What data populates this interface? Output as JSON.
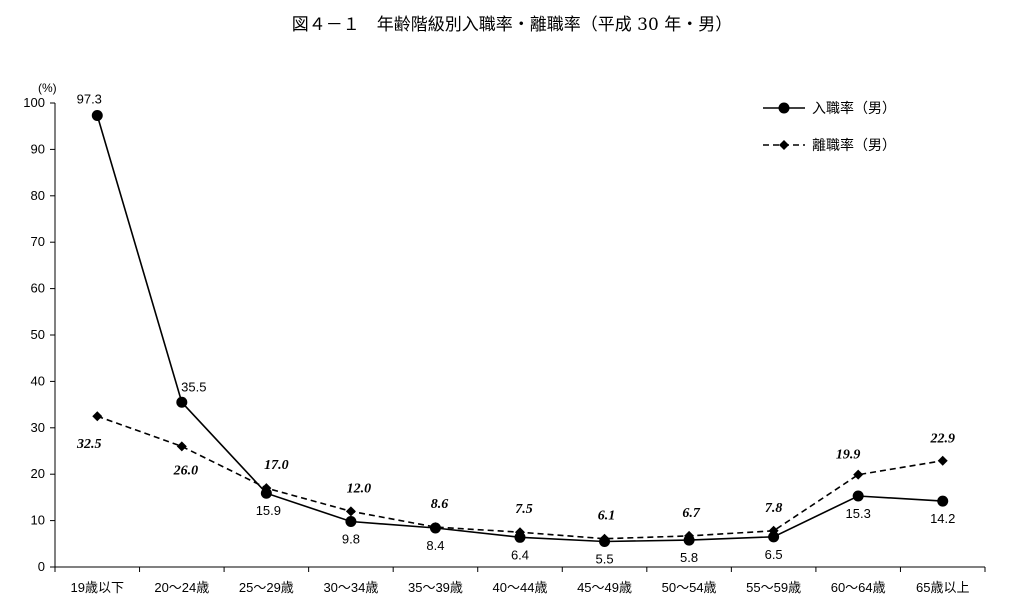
{
  "chart_data": {
    "type": "line",
    "title": "図４－１　年齢階級別入職率・離職率（平成 30 年・男）",
    "unit_label": "(%)",
    "categories": [
      "19歳以下",
      "20～24歳",
      "25～29歳",
      "30～34歳",
      "35～39歳",
      "40～44歳",
      "45～49歳",
      "50～54歳",
      "55～59歳",
      "60～64歳",
      "65歳以上"
    ],
    "ylim": [
      0,
      100
    ],
    "yticks": [
      "0",
      "10",
      "20",
      "30",
      "40",
      "50",
      "60",
      "70",
      "80",
      "90",
      "100"
    ],
    "legend_position": "top-right",
    "grid": false,
    "series": [
      {
        "name": "入職率（男）",
        "style": "solid",
        "marker": "circle",
        "color": "#000000",
        "values": [
          97.3,
          35.5,
          15.9,
          9.8,
          8.4,
          6.4,
          5.5,
          5.8,
          6.5,
          15.3,
          14.2
        ],
        "labels": [
          "97.3",
          "35.5",
          "15.9",
          "9.8",
          "8.4",
          "6.4",
          "5.5",
          "5.8",
          "6.5",
          "15.3",
          "14.2"
        ]
      },
      {
        "name": "離職率（男）",
        "style": "dashed",
        "marker": "diamond",
        "color": "#000000",
        "values": [
          32.5,
          26.0,
          17.0,
          12.0,
          8.6,
          7.5,
          6.1,
          6.7,
          7.8,
          19.9,
          22.9
        ],
        "labels": [
          "32.5",
          "26.0",
          "17.0",
          "12.0",
          "8.6",
          "7.5",
          "6.1",
          "6.7",
          "7.8",
          "19.9",
          "22.9"
        ]
      }
    ]
  }
}
